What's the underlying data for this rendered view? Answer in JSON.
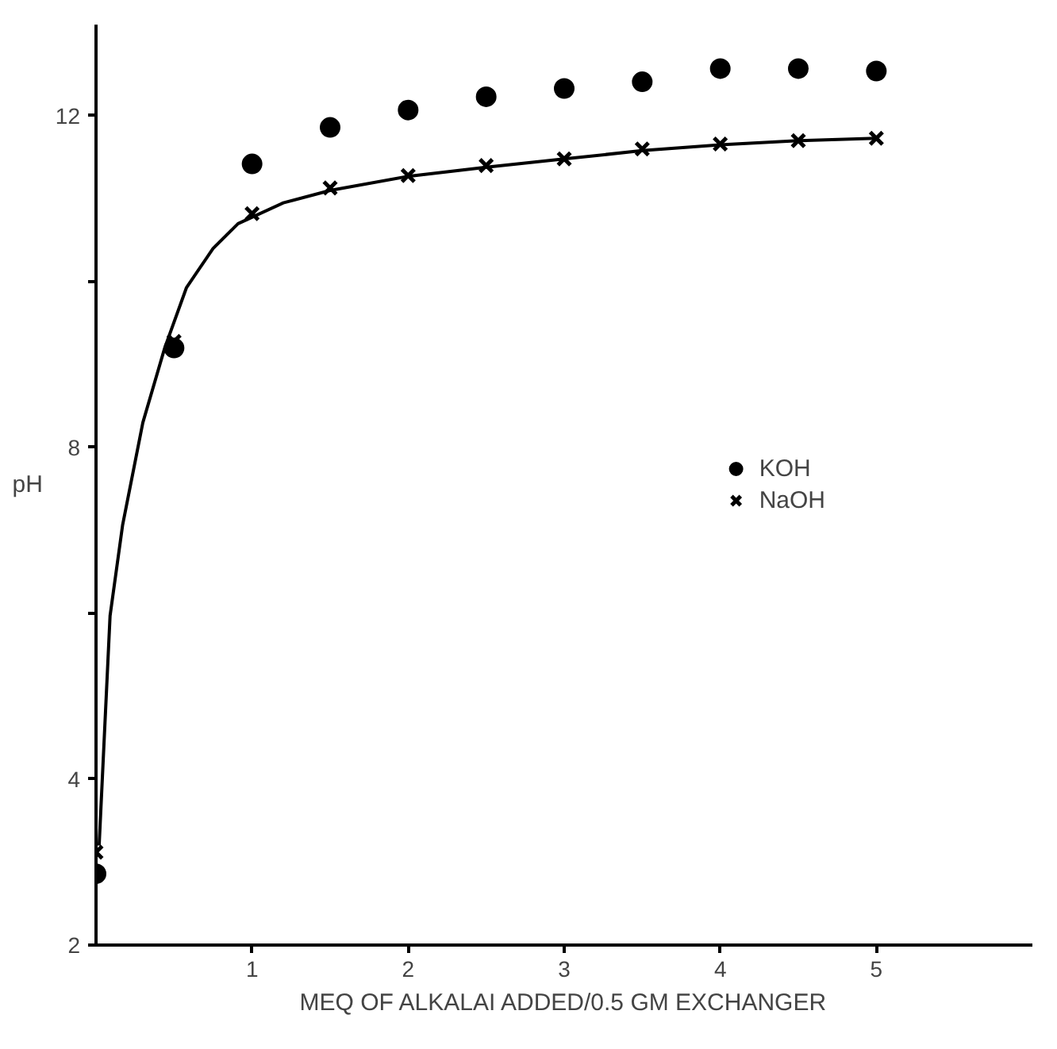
{
  "chart_data": {
    "type": "scatter",
    "xlabel": "MEQ OF ALKALAI ADDED/0.5 GM EXCHANGER",
    "ylabel": "pH",
    "xlim": [
      0,
      6
    ],
    "ylim": [
      2,
      13.1
    ],
    "xticks": [
      1,
      2,
      3,
      4,
      5
    ],
    "yticks": [
      2,
      4,
      {
        "value": 6,
        "label": null
      },
      8,
      {
        "value": 10,
        "label": null
      },
      12
    ],
    "grid": false,
    "legend": "right",
    "series": [
      {
        "name": "KOH",
        "marker": "circle",
        "color": "#000000",
        "x": [
          0,
          0.5,
          1,
          1.5,
          2,
          2.5,
          3,
          3.5,
          4,
          4.5,
          5
        ],
        "values": [
          2.86,
          9.2,
          11.42,
          11.86,
          12.07,
          12.23,
          12.33,
          12.41,
          12.57,
          12.57,
          12.54
        ]
      },
      {
        "name": "NaOH",
        "marker": "cross",
        "color": "#000000",
        "x": [
          0,
          0.5,
          1,
          1.5,
          2,
          2.5,
          3,
          3.5,
          4,
          4.5,
          5
        ],
        "values": [
          3.12,
          9.28,
          10.82,
          11.13,
          11.28,
          11.4,
          11.48,
          11.6,
          11.66,
          11.7,
          11.73
        ]
      },
      {
        "type": "line",
        "marker": "none",
        "color": "#000000",
        "x": [
          0.02,
          0.09,
          0.17,
          0.3,
          0.44,
          0.58,
          0.75,
          0.91,
          1.2,
          1.5,
          2,
          2.5,
          3,
          3.5,
          4,
          4.5,
          5
        ],
        "values": [
          3.2,
          5.97,
          7.06,
          8.3,
          9.2,
          9.93,
          10.4,
          10.7,
          10.95,
          11.1,
          11.27,
          11.38,
          11.48,
          11.58,
          11.65,
          11.7,
          11.73
        ]
      }
    ]
  }
}
